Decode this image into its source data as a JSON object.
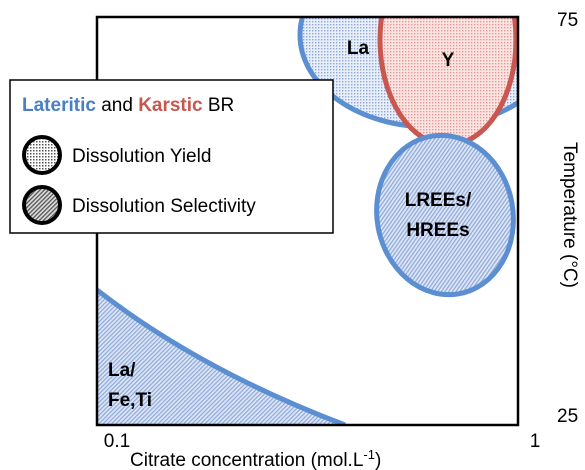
{
  "axes": {
    "y_top": "75",
    "y_bottom": "25",
    "x_left": "0.1",
    "x_right": "1",
    "x_label": "Citrate concentration (mol.L",
    "x_label_sup": "-1",
    "x_label_end": ")",
    "y_label": "Temperature (°C)"
  },
  "legend": {
    "title_part1": "Lateritic",
    "title_part2": " and ",
    "title_part3": "Karstic",
    "title_part4": " BR",
    "items": [
      "Dissolution Yield",
      "Dissolution Selectivity"
    ]
  },
  "regions": {
    "la": "La",
    "y": "Y",
    "ratio_line1": "LREEs/",
    "ratio_line2": "HREEs",
    "lafe_line1": "La/",
    "lafe_line2": "Fe,Ti"
  }
}
